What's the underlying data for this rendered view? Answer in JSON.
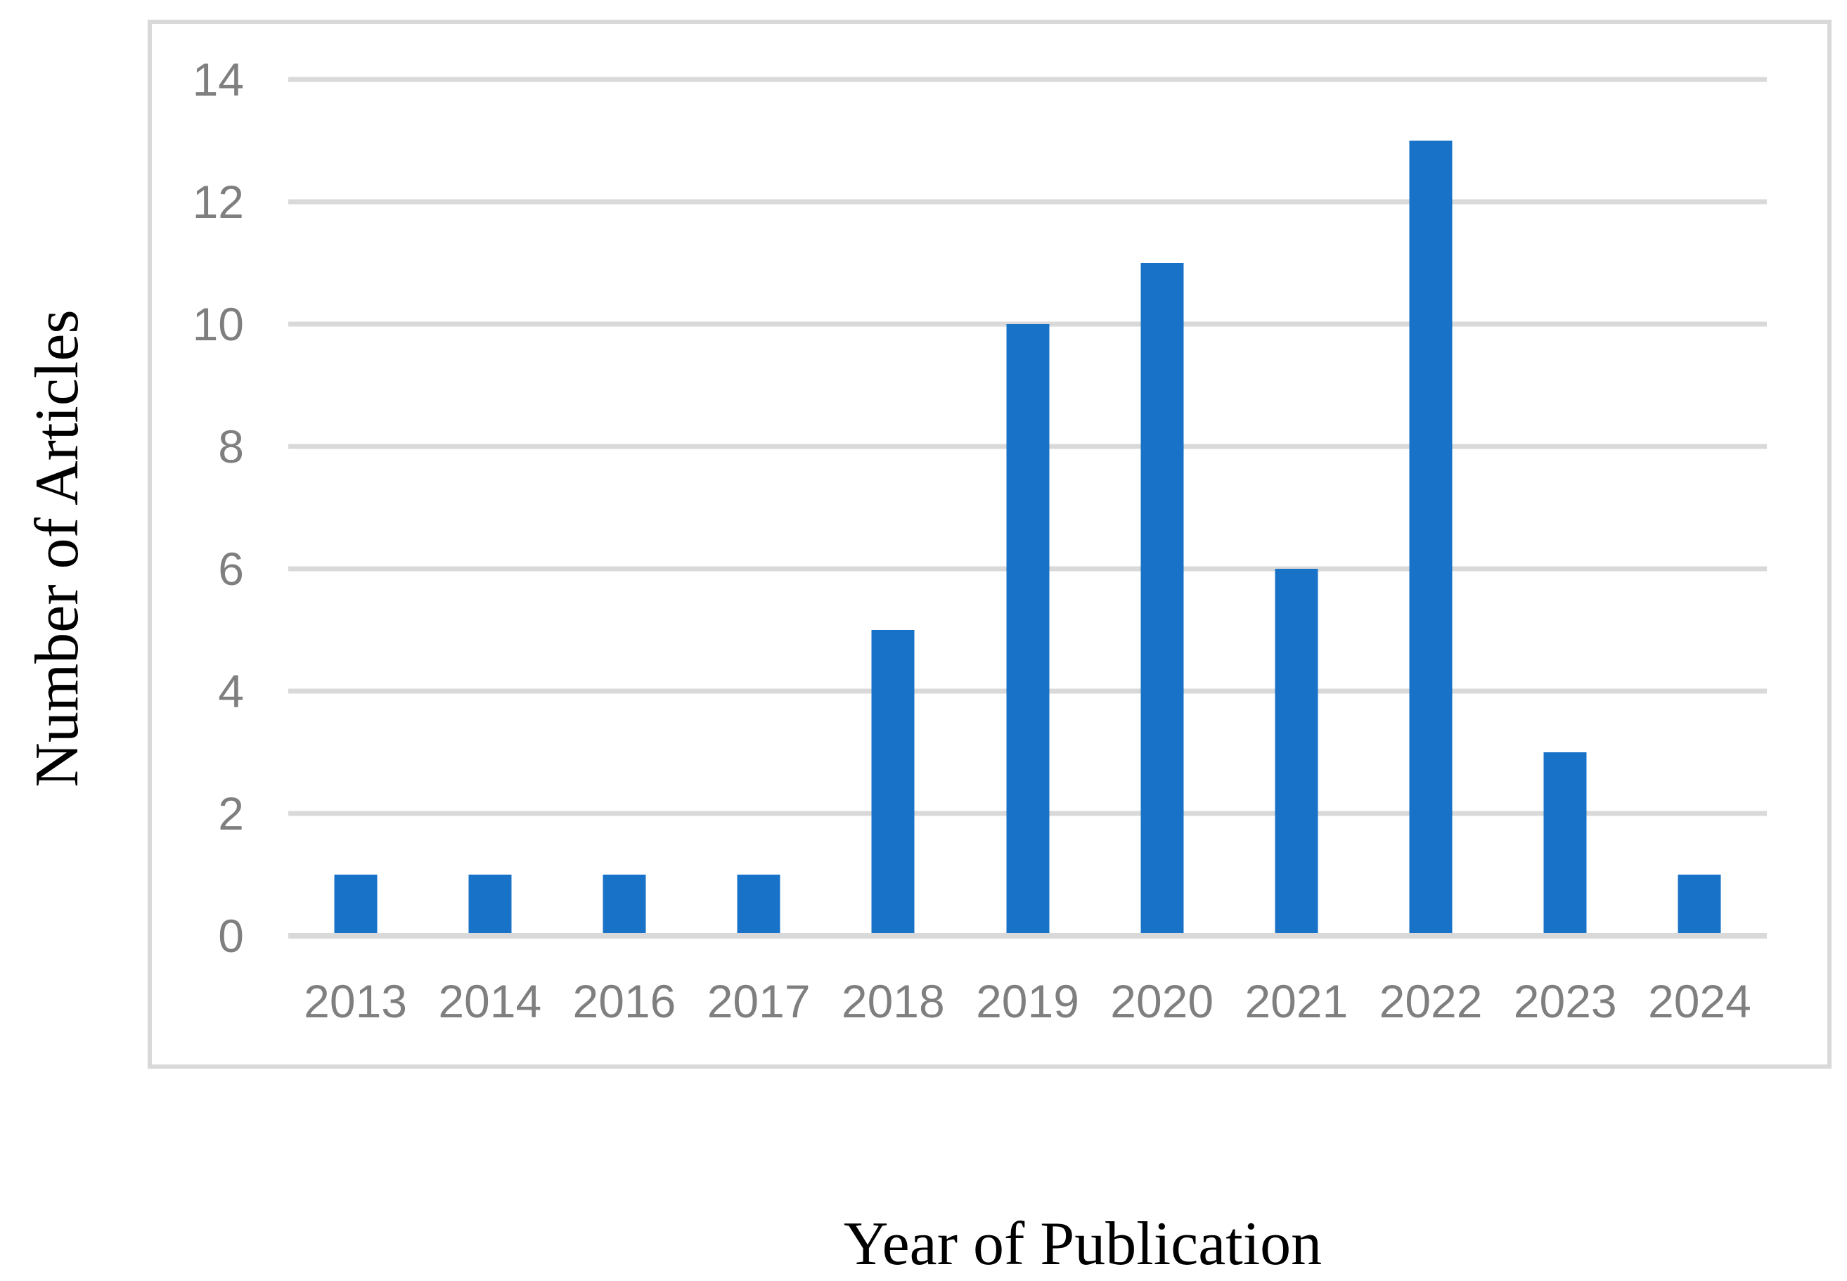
{
  "chart_data": {
    "type": "bar",
    "title": "",
    "xlabel": "Year of Publication",
    "ylabel": "Number of Articles",
    "categories": [
      "2013",
      "2014",
      "2016",
      "2017",
      "2018",
      "2019",
      "2020",
      "2021",
      "2022",
      "2023",
      "2024"
    ],
    "values": [
      1,
      1,
      1,
      1,
      5,
      10,
      11,
      6,
      13,
      3,
      1
    ],
    "ylim": [
      0,
      14
    ],
    "yticks": [
      0,
      2,
      4,
      6,
      8,
      10,
      12,
      14
    ],
    "grid": true,
    "legend": false,
    "bar_color": "#1873C8",
    "gridline_color": "#D9D9D9",
    "frame_border_color": "#D9D9D9",
    "tick_label_color": "#7F7F7F",
    "axis_title_color": "#000000"
  }
}
